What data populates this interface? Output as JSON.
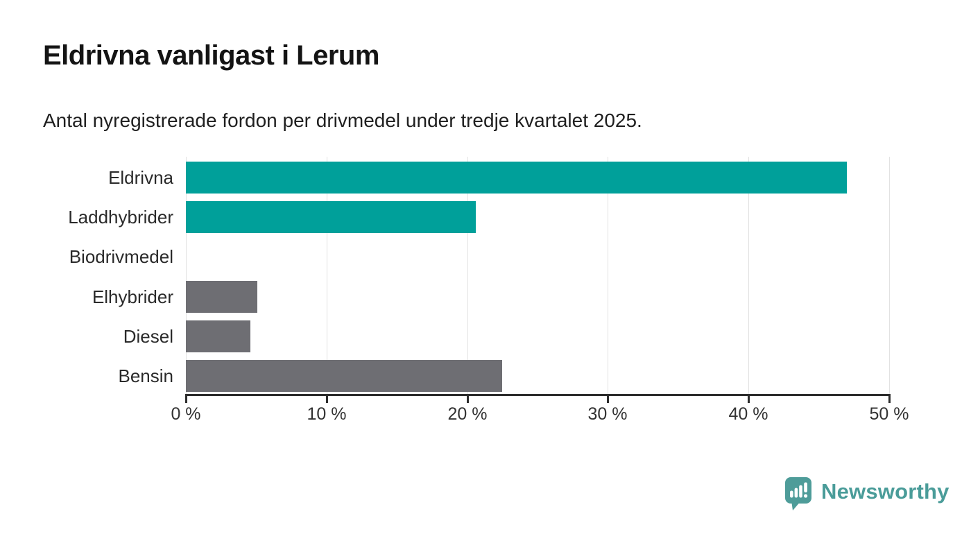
{
  "header": {
    "title": "Eldrivna vanligast i Lerum",
    "subtitle": "Antal nyregistrerade fordon per drivmedel under tredje kvartalet 2025."
  },
  "chart_data": {
    "type": "bar",
    "orientation": "horizontal",
    "title": "Eldrivna vanligast i Lerum",
    "subtitle": "Antal nyregistrerade fordon per drivmedel under tredje kvartalet 2025.",
    "categories": [
      "Eldrivna",
      "Laddhybrider",
      "Biodrivmedel",
      "Elhybrider",
      "Diesel",
      "Bensin"
    ],
    "values": [
      47,
      20.6,
      0,
      5.1,
      4.6,
      22.5
    ],
    "unit": "%",
    "bar_colors": [
      "#00a09a",
      "#00a09a",
      "#00a09a",
      "#6e6e73",
      "#6e6e73",
      "#6e6e73"
    ],
    "highlight_color": "#00a09a",
    "default_color": "#6e6e73",
    "xlim": [
      0,
      50
    ],
    "x_ticks": [
      {
        "value": 0,
        "label": "0 %"
      },
      {
        "value": 10,
        "label": "10 %"
      },
      {
        "value": 20,
        "label": "20 %"
      },
      {
        "value": 30,
        "label": "30 %"
      },
      {
        "value": 40,
        "label": "40 %"
      },
      {
        "value": 50,
        "label": "50 %"
      }
    ],
    "grid": true,
    "legend": false
  },
  "branding": {
    "logo_text": "Newsworthy",
    "logo_color": "#4a9c99",
    "logo_icon": "bar-chart-speech-bubble-icon"
  }
}
